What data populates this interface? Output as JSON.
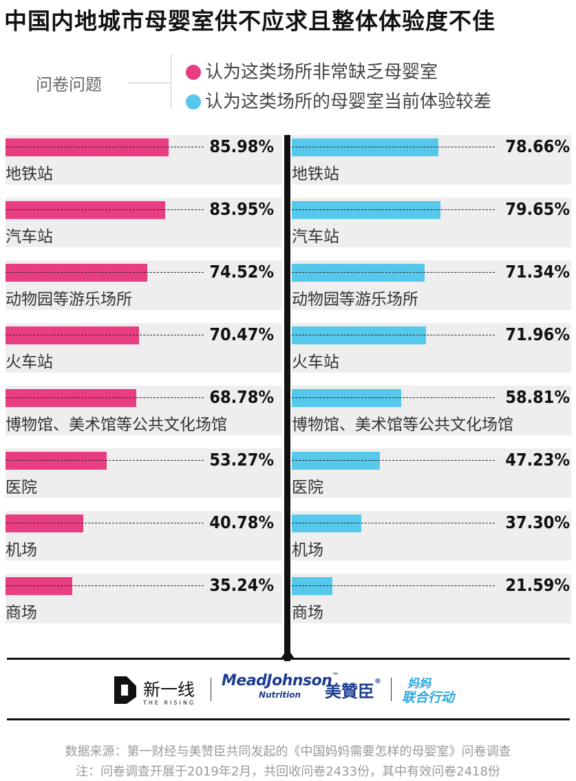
{
  "title": "中国内地城市母婴室供不应求且整体体验度不佳",
  "legend": {
    "question_label": "问卷问题",
    "items": [
      {
        "label": "认为这类场所非常缺乏母婴室",
        "color": "#e93d82"
      },
      {
        "label": "认为这类场所的母婴室当前体验较差",
        "color": "#56c8ec"
      }
    ]
  },
  "chart_data": {
    "type": "bar",
    "orientation": "horizontal",
    "unit": "%",
    "xlim": [
      0,
      100
    ],
    "categories": [
      "地铁站",
      "汽车站",
      "动物园等游乐场所",
      "火车站",
      "博物馆、美术馆等公共文化场馆",
      "医院",
      "机场",
      "商场"
    ],
    "series": [
      {
        "name": "认为这类场所非常缺乏母婴室",
        "color": "#e93d82",
        "values": [
          85.98,
          83.95,
          74.52,
          70.47,
          68.78,
          53.27,
          40.78,
          35.24
        ]
      },
      {
        "name": "认为这类场所的母婴室当前体验较差",
        "color": "#56c8ec",
        "values": [
          78.66,
          79.65,
          71.34,
          71.96,
          58.81,
          47.23,
          37.3,
          21.59
        ]
      }
    ],
    "value_labels": [
      [
        "85.98%",
        "83.95%",
        "74.52%",
        "70.47%",
        "68.78%",
        "53.27%",
        "40.78%",
        "35.24%"
      ],
      [
        "78.66%",
        "79.65%",
        "71.34%",
        "71.96%",
        "58.81%",
        "47.23%",
        "37.30%",
        "21.59%"
      ]
    ]
  },
  "logos": {
    "xinyixian_cn": "新一线",
    "xinyixian_en": "THE RISING",
    "meadjohnson": "MeadJohnson",
    "meadjohnson_tm": "™",
    "nutrition": "Nutrition",
    "meizanchen": "美贊臣",
    "meizanchen_reg": "®",
    "mama_line1": "妈妈",
    "mama_line2": "联合行动"
  },
  "footer": {
    "source": "数据来源：第一财经与美赞臣共同发起的《中国妈妈需要怎样的母婴室》问卷调查",
    "note": "注：问卷调查开展于2019年2月，共回收问卷2433份，其中有效问卷2418份"
  }
}
